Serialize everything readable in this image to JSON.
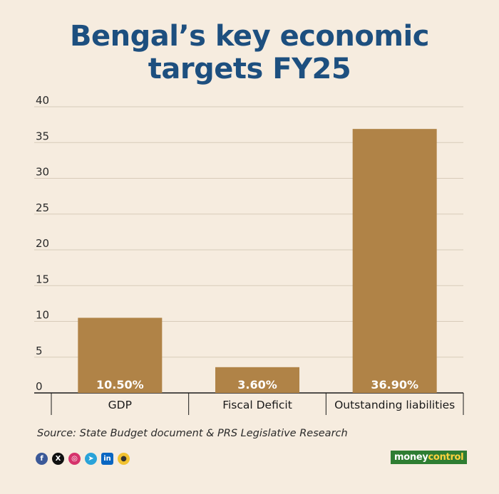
{
  "header": {
    "title_line1": "Bengal’s key economic",
    "title_line2": "targets FY25"
  },
  "chart_data": {
    "type": "bar",
    "title": "Bengal’s key economic targets FY25",
    "categories": [
      "GDP",
      "Fiscal Deficit",
      "Outstanding liabilities"
    ],
    "values": [
      10.5,
      3.6,
      36.9
    ],
    "data_labels": [
      "10.50%",
      "3.60%",
      "36.90%"
    ],
    "ylim": [
      0,
      40
    ],
    "yticks": [
      0,
      5,
      10,
      15,
      20,
      25,
      30,
      35,
      40
    ],
    "xlabel": "",
    "ylabel": "",
    "grid": true,
    "bar_color": "#b08347",
    "label_color": "#ffffff"
  },
  "footer": {
    "source": "Source: State Budget document & PRS Legislative Research",
    "social_icons": [
      "facebook-icon",
      "x-icon",
      "instagram-icon",
      "telegram-icon",
      "linkedin-icon",
      "koo-icon"
    ],
    "brand_part1": "money",
    "brand_part2": "control",
    "brand_color": "#2e7d32"
  }
}
